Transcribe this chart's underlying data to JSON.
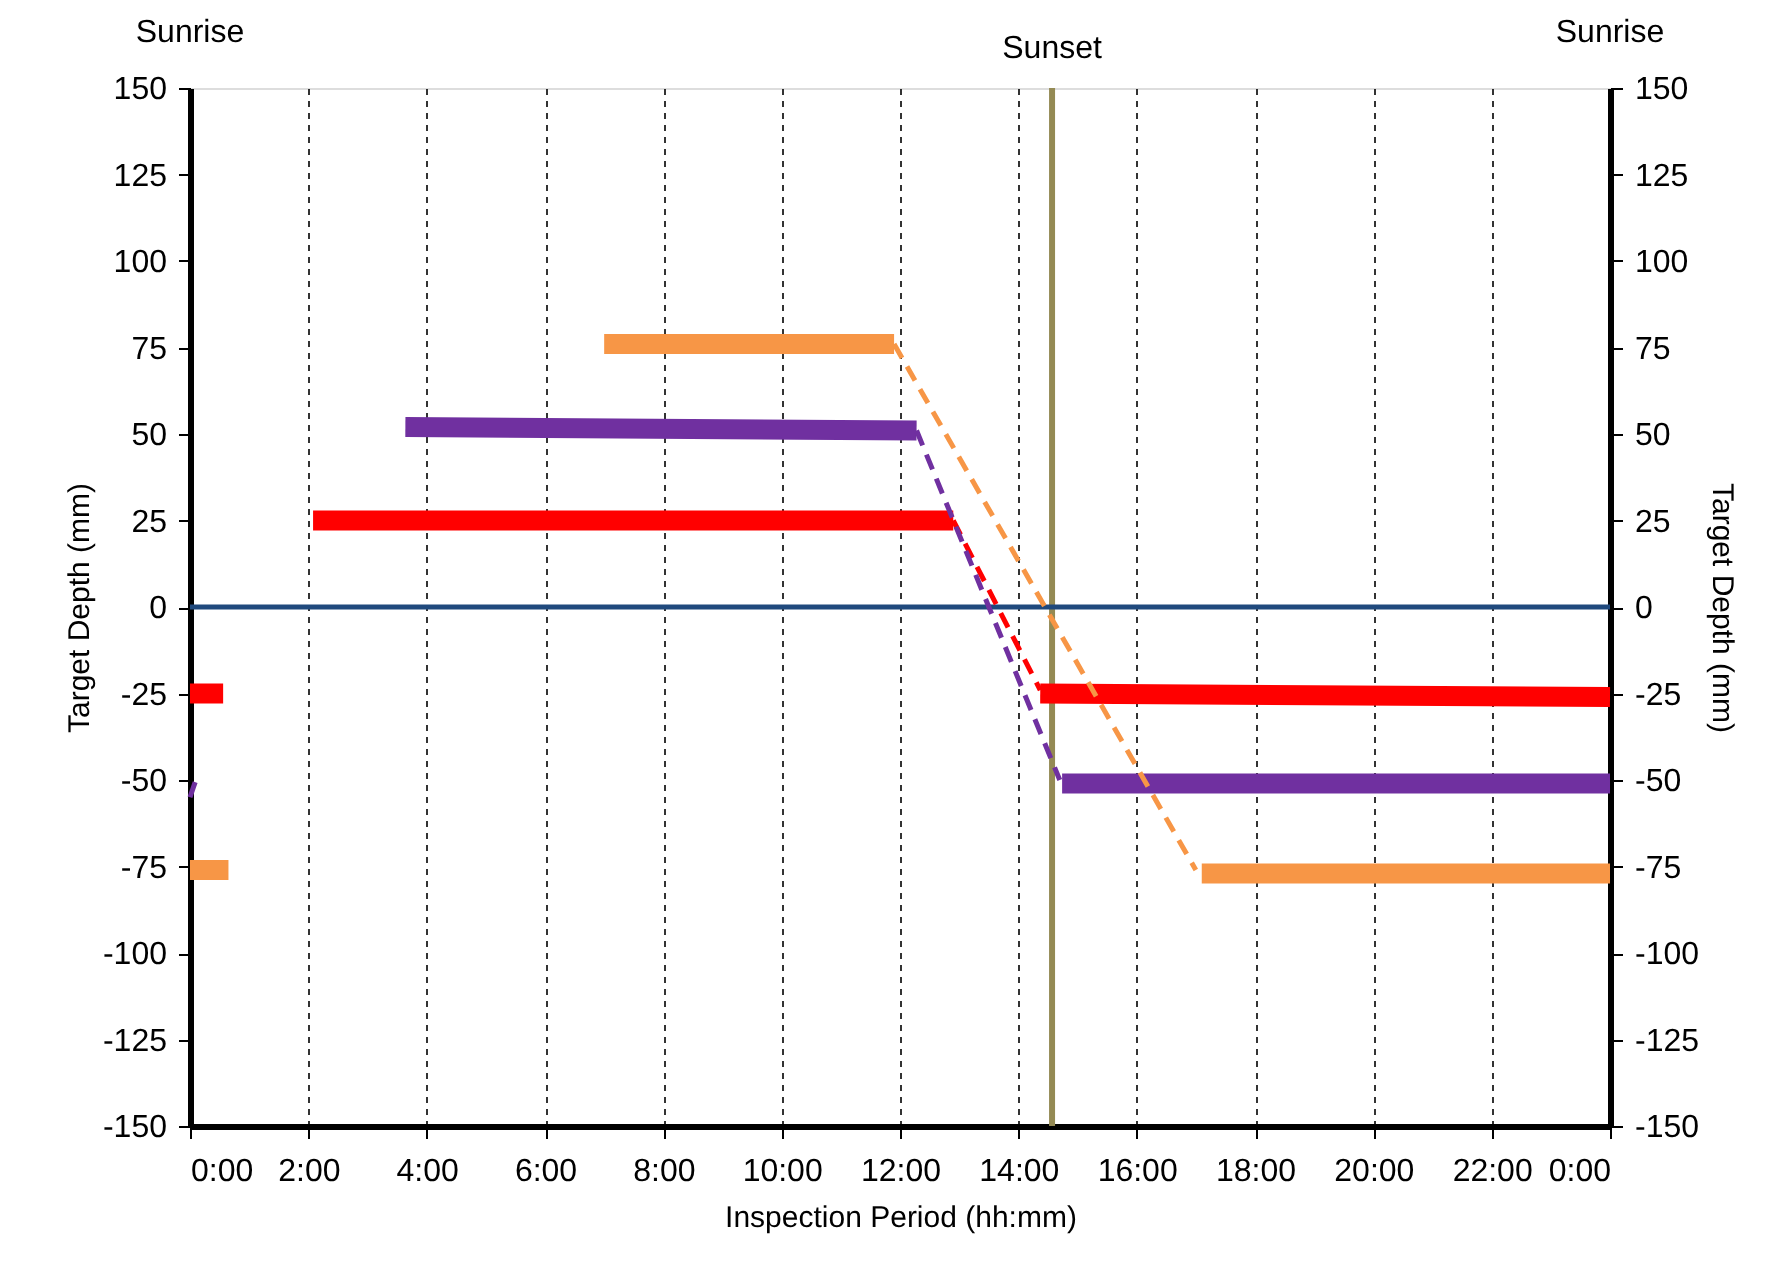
{
  "chart_data": {
    "type": "line",
    "xlabel": "Inspection Period (hh:mm)",
    "ylabel": "Target Depth (mm)",
    "y2label": "Target Depth (mm)",
    "xlim": [
      0,
      24
    ],
    "xticks": [
      {
        "value": 0,
        "label": "0:00"
      },
      {
        "value": 2,
        "label": "2:00"
      },
      {
        "value": 4,
        "label": "4:00"
      },
      {
        "value": 6,
        "label": "6:00"
      },
      {
        "value": 8,
        "label": "8:00"
      },
      {
        "value": 10,
        "label": "10:00"
      },
      {
        "value": 12,
        "label": "12:00"
      },
      {
        "value": 14,
        "label": "14:00"
      },
      {
        "value": 16,
        "label": "16:00"
      },
      {
        "value": 18,
        "label": "18:00"
      },
      {
        "value": 20,
        "label": "20:00"
      },
      {
        "value": 22,
        "label": "22:00"
      },
      {
        "value": 24,
        "label": "0:00"
      }
    ],
    "ylim": [
      -150,
      150
    ],
    "yticks": [
      -150,
      -125,
      -100,
      -75,
      -50,
      -25,
      0,
      25,
      50,
      75,
      100,
      125,
      150
    ],
    "y2lim": [
      -150,
      150
    ],
    "y2ticks": [
      -150,
      -125,
      -100,
      -75,
      -50,
      -25,
      0,
      25,
      50,
      75,
      100,
      125,
      150
    ],
    "grid": "x",
    "marker": "none",
    "series": [
      {
        "color": "#ff0000",
        "line_style": "solid",
        "x": [
          0,
          0.56
        ],
        "values": [
          -25,
          -25
        ]
      },
      {
        "color": "#ff0000",
        "line_style": "solid",
        "x": [
          2.08,
          12.9
        ],
        "values": [
          25,
          25
        ]
      },
      {
        "color": "#ff0000",
        "line_style": "dashed",
        "x": [
          12.9,
          14.37
        ],
        "values": [
          25,
          -24
        ]
      },
      {
        "color": "#ff0000",
        "line_style": "solid",
        "x": [
          14.37,
          24
        ],
        "values": [
          -25,
          -26
        ]
      },
      {
        "color": "#7030a0",
        "line_style": "dashed",
        "x": [
          0,
          0.1
        ],
        "values": [
          -55,
          -50
        ]
      },
      {
        "color": "#7030a0",
        "line_style": "solid",
        "x": [
          3.64,
          12.28
        ],
        "values": [
          52,
          51
        ]
      },
      {
        "color": "#7030a0",
        "line_style": "dashed",
        "x": [
          12.28,
          14.7
        ],
        "values": [
          51,
          -50
        ]
      },
      {
        "color": "#7030a0",
        "line_style": "solid",
        "x": [
          14.74,
          24
        ],
        "values": [
          -51,
          -51
        ]
      },
      {
        "color": "#f79646",
        "line_style": "solid",
        "x": [
          0,
          0.65
        ],
        "values": [
          -76,
          -76
        ]
      },
      {
        "color": "#f79646",
        "line_style": "solid",
        "x": [
          7,
          11.9
        ],
        "values": [
          76,
          76
        ]
      },
      {
        "color": "#f79646",
        "line_style": "dashed",
        "x": [
          11.9,
          17
        ],
        "values": [
          76,
          -76
        ]
      },
      {
        "color": "#f79646",
        "line_style": "solid",
        "x": [
          17.1,
          24
        ],
        "values": [
          -77,
          -77
        ]
      }
    ],
    "ref_lines": [
      {
        "axis": "y",
        "value": 0,
        "color": "#1f497d",
        "line_style": "solid"
      },
      {
        "axis": "x",
        "value": 14.57,
        "label": "Sunset",
        "color": "#948a54",
        "line_style": "solid"
      }
    ],
    "annotations": [
      "Sunrise",
      "Sunrise"
    ]
  }
}
